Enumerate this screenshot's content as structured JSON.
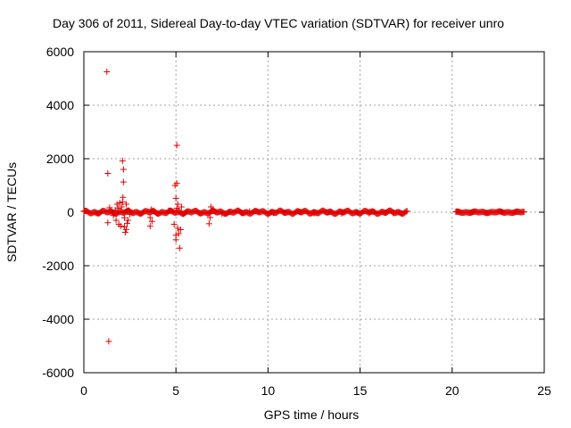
{
  "chart_data": {
    "type": "scatter",
    "title": "Day 306 of 2011, Sidereal Day-to-day VTEC variation (SDTVAR) for receiver unro",
    "xlabel": "GPS time / hours",
    "ylabel": "SDTVAR / TECUs",
    "xlim": [
      0,
      25
    ],
    "ylim": [
      -6000,
      6000
    ],
    "xticks": [
      0,
      5,
      10,
      15,
      20,
      25
    ],
    "xtick_labels": [
      "0",
      "5",
      "10",
      "15",
      "20",
      "25"
    ],
    "yticks": [
      -6000,
      -4000,
      -2000,
      0,
      2000,
      4000,
      6000
    ],
    "ytick_labels": [
      "-6000",
      "-4000",
      "-2000",
      "0",
      "2000",
      "4000",
      "6000"
    ],
    "grid": true,
    "legend": "none",
    "marker": "+",
    "color": "#e00000",
    "points": [
      [
        1.25,
        5250
      ],
      [
        1.3,
        1450
      ],
      [
        1.3,
        -390
      ],
      [
        1.4,
        170
      ],
      [
        1.35,
        -4830
      ],
      [
        1.6,
        -120
      ],
      [
        1.7,
        80
      ],
      [
        1.75,
        -300
      ],
      [
        1.8,
        300
      ],
      [
        1.85,
        150
      ],
      [
        1.9,
        -450
      ],
      [
        1.95,
        350
      ],
      [
        2.0,
        -520
      ],
      [
        2.05,
        200
      ],
      [
        2.1,
        1920
      ],
      [
        2.15,
        1600
      ],
      [
        2.15,
        1130
      ],
      [
        2.12,
        560
      ],
      [
        2.1,
        380
      ],
      [
        2.2,
        -210
      ],
      [
        2.2,
        -550
      ],
      [
        2.25,
        -750
      ],
      [
        2.3,
        -640
      ],
      [
        2.3,
        300
      ],
      [
        2.35,
        -420
      ],
      [
        2.4,
        -300
      ],
      [
        2.45,
        60
      ],
      [
        2.5,
        -80
      ],
      [
        3.6,
        -200
      ],
      [
        3.6,
        -520
      ],
      [
        3.65,
        100
      ],
      [
        3.7,
        -340
      ],
      [
        3.75,
        60
      ],
      [
        4.6,
        60
      ],
      [
        4.9,
        -450
      ],
      [
        4.95,
        1000
      ],
      [
        5.0,
        520
      ],
      [
        5.05,
        1080
      ],
      [
        5.05,
        2500
      ],
      [
        5.0,
        -860
      ],
      [
        5.0,
        -1030
      ],
      [
        5.05,
        150
      ],
      [
        5.1,
        -600
      ],
      [
        5.15,
        -800
      ],
      [
        5.1,
        300
      ],
      [
        5.2,
        -1340
      ],
      [
        5.25,
        -650
      ],
      [
        5.3,
        200
      ],
      [
        6.8,
        -430
      ],
      [
        6.85,
        -200
      ],
      [
        6.9,
        200
      ],
      [
        7.0,
        100
      ],
      [
        7.5,
        -60
      ],
      [
        9.0,
        30
      ],
      [
        10.3,
        -30
      ],
      [
        12.5,
        -40
      ],
      [
        14.0,
        -50
      ],
      [
        15.5,
        -40
      ],
      [
        16.8,
        -30
      ]
    ],
    "dense_segments": [
      {
        "x": [
          0.0,
          17.55
        ],
        "y_spread": 60
      },
      {
        "x": [
          20.2,
          23.9
        ],
        "y_spread": 30
      }
    ]
  }
}
